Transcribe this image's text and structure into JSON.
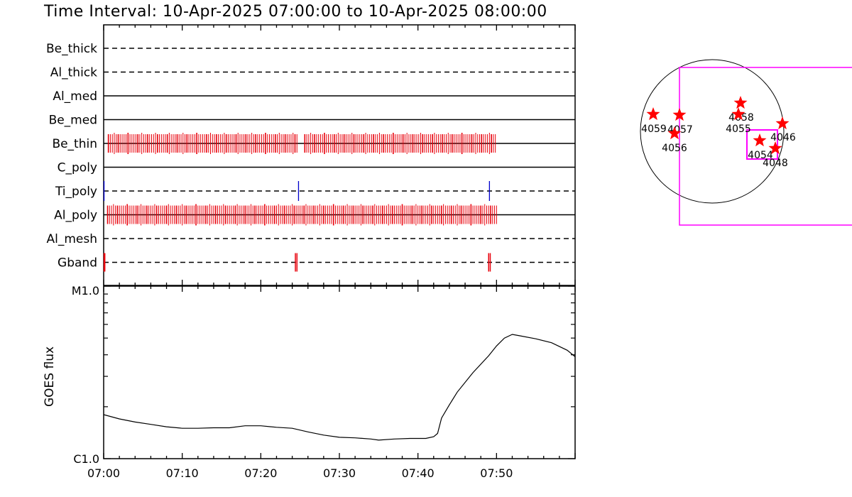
{
  "title": "Time Interval: 10-Apr-2025 07:00:00 to 10-Apr-2025 08:00:00",
  "chart_data": [
    {
      "type": "event-timeline",
      "x_range": [
        "07:00",
        "08:00"
      ],
      "x_tick_labels": [
        "07:00",
        "07:10",
        "07:20",
        "07:30",
        "07:40",
        "07:50"
      ],
      "rows": [
        {
          "name": "Be_thick",
          "line": "dashed",
          "events": []
        },
        {
          "name": "Al_thick",
          "line": "dashed",
          "events": []
        },
        {
          "name": "Al_med",
          "line": "solid",
          "events": []
        },
        {
          "name": "Be_med",
          "line": "solid",
          "events": []
        },
        {
          "name": "Be_thin",
          "line": "solid",
          "events": [
            {
              "start_min": 0.6,
              "end_min": 24.6,
              "color": "#e8000b",
              "density": "dense"
            },
            {
              "start_min": 25.6,
              "end_min": 50.0,
              "color": "#e8000b",
              "density": "dense"
            }
          ]
        },
        {
          "name": "C_poly",
          "line": "solid",
          "events": []
        },
        {
          "name": "Ti_poly",
          "line": "dashed",
          "events": [
            {
              "start_min": 0.05,
              "end_min": 0.05,
              "color": "#0000cc",
              "density": "single"
            },
            {
              "start_min": 24.8,
              "end_min": 24.8,
              "color": "#0000cc",
              "density": "single"
            },
            {
              "start_min": 49.1,
              "end_min": 49.1,
              "color": "#0000cc",
              "density": "single"
            }
          ]
        },
        {
          "name": "Al_poly",
          "line": "solid",
          "events": [
            {
              "start_min": 0.5,
              "end_min": 50.0,
              "color": "#e8000b",
              "density": "dense"
            }
          ]
        },
        {
          "name": "Al_mesh",
          "line": "dashed",
          "events": []
        },
        {
          "name": "Gband",
          "line": "dashed",
          "events": [
            {
              "start_min": 0.05,
              "end_min": 0.15,
              "color": "#e8000b",
              "density": "pair"
            },
            {
              "start_min": 24.4,
              "end_min": 24.6,
              "color": "#e8000b",
              "density": "pair"
            },
            {
              "start_min": 49.0,
              "end_min": 49.2,
              "color": "#e8000b",
              "density": "pair"
            }
          ]
        }
      ]
    },
    {
      "type": "line",
      "ylabel": "GOES flux",
      "y_scale": "log",
      "y_range": [
        "C1.0",
        "M1.0"
      ],
      "ylim": [
        1e-06,
        1e-05
      ],
      "x_range_min": [
        0,
        60
      ],
      "x_tick_labels": [
        "07:00",
        "07:10",
        "07:20",
        "07:30",
        "07:40",
        "07:50"
      ],
      "series": [
        {
          "x_min": [
            0,
            2,
            4,
            6,
            8,
            10,
            12,
            14,
            16,
            18,
            20,
            22,
            24,
            26,
            28,
            30,
            32,
            34,
            35,
            37,
            39,
            41,
            42,
            42.5,
            43,
            44,
            45,
            47,
            49,
            50,
            51,
            52,
            53,
            55,
            57,
            59,
            60
          ],
          "y": [
            1.8e-06,
            1.7e-06,
            1.63e-06,
            1.58e-06,
            1.53e-06,
            1.5e-06,
            1.5e-06,
            1.51e-06,
            1.51e-06,
            1.55e-06,
            1.55e-06,
            1.52e-06,
            1.5e-06,
            1.43e-06,
            1.37e-06,
            1.33e-06,
            1.32e-06,
            1.3e-06,
            1.28e-06,
            1.3e-06,
            1.31e-06,
            1.31e-06,
            1.34e-06,
            1.4e-06,
            1.72e-06,
            2.05e-06,
            2.43e-06,
            3.15e-06,
            3.95e-06,
            4.5e-06,
            5e-06,
            5.25e-06,
            5.15e-06,
            4.95e-06,
            4.7e-06,
            4.25e-06,
            3.9e-06
          ]
        }
      ]
    }
  ],
  "solar_map": {
    "regions": [
      {
        "label": "4059"
      },
      {
        "label": "4057"
      },
      {
        "label": "4056"
      },
      {
        "label": "4058"
      },
      {
        "label": "4055"
      },
      {
        "label": "4046"
      },
      {
        "label": "4054"
      },
      {
        "label": "4048"
      }
    ],
    "colors": {
      "star": "#ff0000",
      "fov": "#ff00ff",
      "disk": "#000000"
    }
  }
}
